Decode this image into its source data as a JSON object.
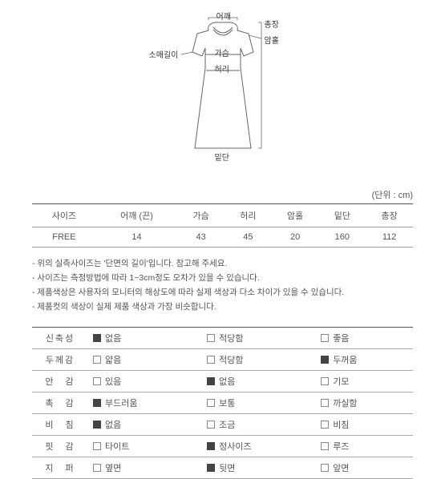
{
  "diagram": {
    "labels": {
      "shoulder": "어깨",
      "length": "총장",
      "sleeve": "소매길이",
      "armhole": "암홀",
      "bust": "가슴",
      "waist": "허리",
      "hem": "밑단"
    }
  },
  "unit_text": "(단위 : cm)",
  "size_table": {
    "headers": [
      "사이즈",
      "어깨 (끈)",
      "가슴",
      "허리",
      "암홀",
      "밑단",
      "총장"
    ],
    "row": [
      "FREE",
      "14",
      "43",
      "45",
      "20",
      "160",
      "112"
    ]
  },
  "notes": [
    "- 위의 실측사이즈는 '단면의 길이'입니다. 참고해 주세요.",
    "- 사이즈는 측정방법에 따라 1~3cm정도 오차가 있을 수 있습니다.",
    "- 제품색상은 사용자의 모니터의 해상도에 따라 실제 색상과 다소 차이가 있을 수 있습니다.",
    "- 제품컷의 색상이 실제 제품 색상과 가장 비슷합니다."
  ],
  "attributes": [
    {
      "key": "신축성",
      "opts": [
        {
          "label": "없음",
          "checked": true
        },
        {
          "label": "적당함",
          "checked": false
        },
        {
          "label": "좋음",
          "checked": false
        }
      ]
    },
    {
      "key": "두께감",
      "opts": [
        {
          "label": "얇음",
          "checked": false
        },
        {
          "label": "적당함",
          "checked": false
        },
        {
          "label": "두꺼움",
          "checked": true
        }
      ]
    },
    {
      "key": "안　감",
      "opts": [
        {
          "label": "있음",
          "checked": false
        },
        {
          "label": "없음",
          "checked": true
        },
        {
          "label": "기모",
          "checked": false
        }
      ]
    },
    {
      "key": "촉　감",
      "opts": [
        {
          "label": "부드러움",
          "checked": true
        },
        {
          "label": "보통",
          "checked": false
        },
        {
          "label": "까실함",
          "checked": false
        }
      ]
    },
    {
      "key": "비　침",
      "opts": [
        {
          "label": "없음",
          "checked": true
        },
        {
          "label": "조금",
          "checked": false
        },
        {
          "label": "비침",
          "checked": false
        }
      ]
    },
    {
      "key": "핏　감",
      "opts": [
        {
          "label": "타이트",
          "checked": false
        },
        {
          "label": "정사이즈",
          "checked": true
        },
        {
          "label": "루즈",
          "checked": false
        }
      ]
    },
    {
      "key": "지　퍼",
      "opts": [
        {
          "label": "옆면",
          "checked": false
        },
        {
          "label": "뒷면",
          "checked": true
        },
        {
          "label": "앞면",
          "checked": false
        }
      ]
    }
  ]
}
